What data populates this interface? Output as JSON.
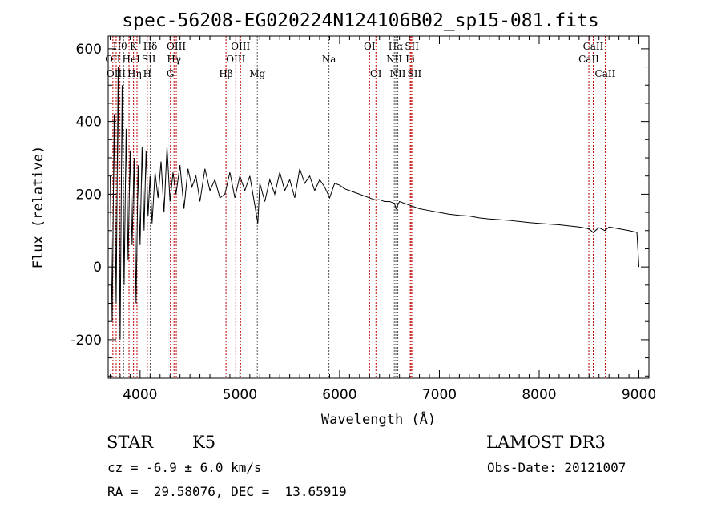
{
  "chart_data": {
    "type": "line",
    "title": "spec-56208-EG020224N124106B02_sp15-081.fits",
    "xlabel": "Wavelength (Å)",
    "ylabel": "Flux (relative)",
    "xlim": [
      3680,
      9100
    ],
    "ylim": [
      -306,
      635
    ],
    "xticks": [
      4000,
      5000,
      6000,
      7000,
      8000,
      9000
    ],
    "yticks": [
      -200,
      0,
      200,
      400,
      600
    ],
    "grid": false,
    "series": [
      {
        "name": "flux",
        "x": [
          3700,
          3720,
          3740,
          3760,
          3780,
          3800,
          3820,
          3840,
          3860,
          3880,
          3900,
          3920,
          3940,
          3960,
          3980,
          4000,
          4020,
          4040,
          4060,
          4080,
          4100,
          4120,
          4150,
          4180,
          4210,
          4240,
          4270,
          4300,
          4330,
          4360,
          4400,
          4440,
          4480,
          4520,
          4560,
          4600,
          4650,
          4700,
          4750,
          4800,
          4850,
          4900,
          4950,
          5000,
          5050,
          5100,
          5150,
          5180,
          5200,
          5250,
          5300,
          5350,
          5400,
          5450,
          5500,
          5550,
          5600,
          5650,
          5700,
          5750,
          5800,
          5850,
          5900,
          5950,
          6000,
          6050,
          6100,
          6150,
          6200,
          6250,
          6300,
          6350,
          6400,
          6450,
          6500,
          6550,
          6565,
          6600,
          6650,
          6700,
          6750,
          6800,
          6900,
          7000,
          7100,
          7200,
          7300,
          7400,
          7500,
          7600,
          7700,
          7800,
          7900,
          8000,
          8100,
          8200,
          8300,
          8400,
          8500,
          8540,
          8600,
          8660,
          8700,
          8800,
          8900,
          8980,
          9000
        ],
        "y": [
          250,
          -150,
          420,
          -100,
          550,
          -200,
          500,
          -50,
          380,
          20,
          320,
          60,
          300,
          -100,
          280,
          60,
          330,
          100,
          320,
          140,
          250,
          120,
          260,
          190,
          290,
          150,
          330,
          180,
          260,
          200,
          280,
          160,
          270,
          220,
          250,
          180,
          270,
          210,
          240,
          190,
          200,
          260,
          190,
          250,
          210,
          250,
          170,
          120,
          230,
          180,
          240,
          200,
          260,
          210,
          240,
          190,
          270,
          230,
          250,
          210,
          240,
          220,
          190,
          230,
          225,
          215,
          210,
          205,
          200,
          195,
          190,
          185,
          185,
          180,
          180,
          175,
          160,
          180,
          175,
          170,
          165,
          160,
          155,
          150,
          145,
          142,
          140,
          135,
          132,
          130,
          128,
          125,
          122,
          120,
          118,
          116,
          113,
          110,
          105,
          95,
          108,
          100,
          110,
          105,
          100,
          95,
          0
        ]
      }
    ]
  },
  "lines": [
    {
      "label": "Hθ",
      "w": 3798,
      "row": 0,
      "c": "#c00000"
    },
    {
      "label": "K",
      "w": 3934,
      "row": 0,
      "c": "#c00000"
    },
    {
      "label": "Hδ",
      "w": 4102,
      "row": 0,
      "c": "#555"
    },
    {
      "label": "OIII",
      "w": 4363,
      "row": 0,
      "c": "#c00000"
    },
    {
      "label": "OIII",
      "w": 5007,
      "row": 0,
      "c": "#c00000"
    },
    {
      "label": "OI",
      "w": 6300,
      "row": 0,
      "c": "#c00000"
    },
    {
      "label": "Hα",
      "w": 6563,
      "row": 0,
      "c": "#555"
    },
    {
      "label": "SII",
      "w": 6717,
      "row": 0,
      "c": "#c00000"
    },
    {
      "label": "CaII",
      "w": 8542,
      "row": 0,
      "c": "#c00000"
    },
    {
      "label": "OII",
      "w": 3727,
      "row": 1,
      "c": "#c00000"
    },
    {
      "label": "HeI",
      "w": 3889,
      "row": 1,
      "c": "#c00000"
    },
    {
      "label": "SII",
      "w": 4072,
      "row": 1,
      "c": "#c00000"
    },
    {
      "label": "Hγ",
      "w": 4340,
      "row": 1,
      "c": "#c00000"
    },
    {
      "label": "OIII",
      "w": 4959,
      "row": 1,
      "c": "#c00000"
    },
    {
      "label": "Na",
      "w": 5893,
      "row": 1,
      "c": "#555"
    },
    {
      "label": "NII",
      "w": 6548,
      "row": 1,
      "c": "#555"
    },
    {
      "label": "Li",
      "w": 6708,
      "row": 1,
      "c": "#c00000"
    },
    {
      "label": "CaII",
      "w": 8498,
      "row": 1,
      "c": "#c00000"
    },
    {
      "label": "OIII",
      "w": 3760,
      "row": 2,
      "c": "#c00000"
    },
    {
      "label": "Hη",
      "w": 3835,
      "row": 2,
      "c": "#555"
    },
    {
      "label": "H",
      "w": 3969,
      "row": 2,
      "c": "#c00000"
    },
    {
      "label": "G",
      "w": 4304,
      "row": 2,
      "c": "#c00000"
    },
    {
      "label": "Hβ",
      "w": 4861,
      "row": 2,
      "c": "#c00000"
    },
    {
      "label": "Mg",
      "w": 5175,
      "row": 2,
      "c": "#555"
    },
    {
      "label": "OI",
      "w": 6364,
      "row": 2,
      "c": "#c00000"
    },
    {
      "label": "NII",
      "w": 6583,
      "row": 2,
      "c": "#555"
    },
    {
      "label": "SII",
      "w": 6731,
      "row": 2,
      "c": "#c00000"
    },
    {
      "label": "CaII",
      "w": 8662,
      "row": 2,
      "c": "#c00000"
    }
  ],
  "info": {
    "class": "STAR",
    "subclass": "K5",
    "survey": "LAMOST DR3",
    "cz": "cz = -6.9 ± 6.0 km/s",
    "obsdate": "Obs-Date: 20121007",
    "radec": "RA =  29.58076, DEC =  13.65919"
  }
}
